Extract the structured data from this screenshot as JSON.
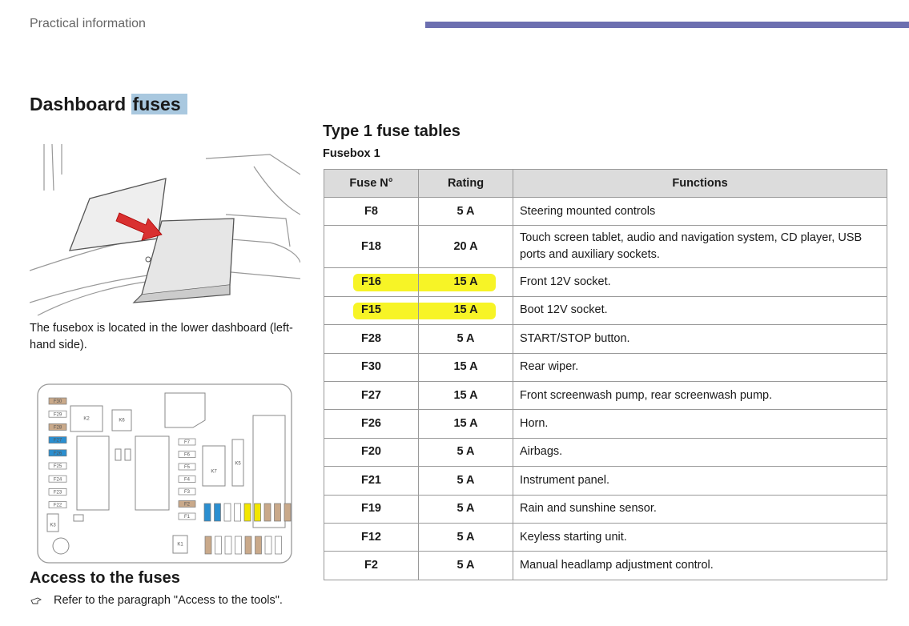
{
  "header": {
    "section": "Practical information"
  },
  "left": {
    "title_main": "Dashboard",
    "title_highlight": "fuses",
    "caption": "The fusebox is located in the lower dashboard (left-hand side).",
    "fusebox_labels": {
      "relays": [
        "K2",
        "K6",
        "K5",
        "K7",
        "K1",
        "K3"
      ],
      "left_fuses": [
        "F30",
        "F29",
        "F28",
        "F27",
        "F26",
        "F25",
        "F24",
        "F23",
        "F22"
      ],
      "mid_fuses": [
        "F7",
        "F6",
        "F5",
        "F4",
        "F3",
        "F2",
        "F1"
      ]
    },
    "access_title": "Access to the fuses",
    "access_text": "Refer to the paragraph \"Access to the tools\"."
  },
  "right": {
    "title": "Type 1 fuse tables",
    "subtitle": "Fusebox 1",
    "table": {
      "header": [
        "Fuse N°",
        "Rating",
        "Functions"
      ],
      "rows": [
        {
          "fuse": "F8",
          "rating": "5 A",
          "function": "Steering mounted controls"
        },
        {
          "fuse": "F18",
          "rating": "20 A",
          "function": "Touch screen tablet, audio and navigation system, CD player, USB ports and auxiliary sockets."
        },
        {
          "fuse": "F16",
          "rating": "15 A",
          "function": "Front 12V socket.",
          "highlighted": true
        },
        {
          "fuse": "F15",
          "rating": "15 A",
          "function": "Boot 12V socket.",
          "highlighted": true
        },
        {
          "fuse": "F28",
          "rating": "5 A",
          "function": "START/STOP button."
        },
        {
          "fuse": "F30",
          "rating": "15 A",
          "function": "Rear wiper."
        },
        {
          "fuse": "F27",
          "rating": "15 A",
          "function": "Front screenwash pump, rear screenwash pump."
        },
        {
          "fuse": "F26",
          "rating": "15 A",
          "function": "Horn."
        },
        {
          "fuse": "F20",
          "rating": "5 A",
          "function": "Airbags."
        },
        {
          "fuse": "F21",
          "rating": "5 A",
          "function": "Instrument panel."
        },
        {
          "fuse": "F19",
          "rating": "5 A",
          "function": "Rain and sunshine sensor."
        },
        {
          "fuse": "F12",
          "rating": "5 A",
          "function": "Keyless starting unit."
        },
        {
          "fuse": "F2",
          "rating": "5 A",
          "function": "Manual headlamp adjustment control."
        }
      ]
    }
  }
}
